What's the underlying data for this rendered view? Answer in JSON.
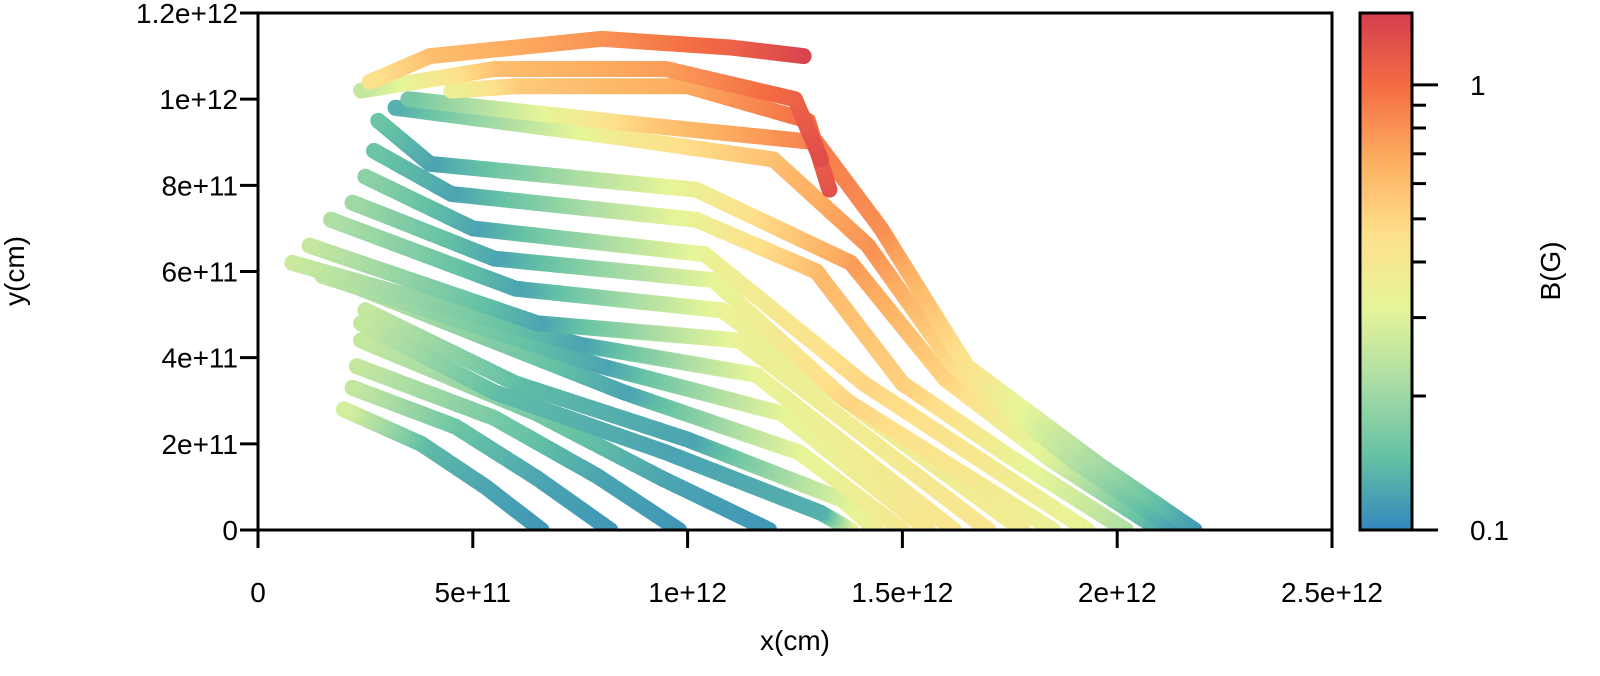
{
  "chart_data": {
    "type": "scatter",
    "title": "",
    "xlabel": "x(cm)",
    "ylabel": "y(cm)",
    "xlim": [
      0,
      2500000000000.0
    ],
    "ylim": [
      0,
      1200000000000.0
    ],
    "x_ticks": [
      0,
      500000000000.0,
      1000000000000.0,
      1500000000000.0,
      2000000000000.0,
      2500000000000.0
    ],
    "x_tick_labels": [
      "0",
      "5e+11",
      "1e+12",
      "1.5e+12",
      "2e+12",
      "2.5e+12"
    ],
    "y_ticks": [
      0,
      200000000000.0,
      400000000000.0,
      600000000000.0,
      800000000000.0,
      1000000000000.0,
      1200000000000.0
    ],
    "y_tick_labels": [
      "0",
      "2e+11",
      "4e+11",
      "6e+11",
      "8e+11",
      "1e+12",
      "1.2e+12"
    ],
    "colorbar": {
      "label": "B(G)",
      "scale": "log",
      "range": [
        0.1,
        1.45
      ],
      "tick_labels": [
        "1",
        "0.1"
      ],
      "major_ticks": [
        1,
        0.1
      ],
      "minor_ticks": [
        0.2,
        0.3,
        0.4,
        0.5,
        0.6,
        0.7,
        0.8,
        0.9
      ],
      "colormap_stops": [
        "#3288bd",
        "#66c2a5",
        "#abdda4",
        "#e6f598",
        "#fee08b",
        "#fdae61",
        "#f46d43",
        "#d53e4f"
      ]
    },
    "description": "Magnetic field lines (sequence of points colored by field strength B). Field-line footpoints at y=0 expand outward from the lower-left (open region) toward the right; upper lines arc over the top.",
    "field_lines": [
      {
        "points": [
          [
            660000000000.0,
            0.0
          ],
          [
            530000000000.0,
            100000000000.0
          ],
          [
            380000000000.0,
            200000000000.0
          ],
          [
            200000000000.0,
            280000000000.0
          ]
        ],
        "b": [
          0.11,
          0.12,
          0.14,
          0.28
        ]
      },
      {
        "points": [
          [
            820000000000.0,
            0.0
          ],
          [
            650000000000.0,
            120000000000.0
          ],
          [
            460000000000.0,
            240000000000.0
          ],
          [
            220000000000.0,
            330000000000.0
          ]
        ],
        "b": [
          0.11,
          0.12,
          0.15,
          0.25
        ]
      },
      {
        "points": [
          [
            980000000000.0,
            0.0
          ],
          [
            790000000000.0,
            125000000000.0
          ],
          [
            550000000000.0,
            260000000000.0
          ],
          [
            230000000000.0,
            380000000000.0
          ]
        ],
        "b": [
          0.11,
          0.12,
          0.16,
          0.25
        ]
      },
      {
        "points": [
          [
            1190000000000.0,
            0.0
          ],
          [
            940000000000.0,
            120000000000.0
          ],
          [
            650000000000.0,
            270000000000.0
          ],
          [
            240000000000.0,
            440000000000.0
          ]
        ],
        "b": [
          0.11,
          0.12,
          0.16,
          0.25
        ]
      },
      {
        "points": [
          [
            1380000000000.0,
            0.0
          ],
          [
            1310000000000.0,
            40000000000.0
          ],
          [
            950000000000.0,
            180000000000.0
          ],
          [
            550000000000.0,
            320000000000.0
          ],
          [
            240000000000.0,
            480000000000.0
          ]
        ],
        "b": [
          0.34,
          0.13,
          0.12,
          0.14,
          0.25
        ]
      },
      {
        "points": [
          [
            1440000000000.0,
            0.0
          ],
          [
            1360000000000.0,
            70000000000.0
          ],
          [
            1000000000000.0,
            210000000000.0
          ],
          [
            600000000000.0,
            340000000000.0
          ],
          [
            250000000000.0,
            510000000000.0
          ]
        ],
        "b": [
          0.38,
          0.3,
          0.12,
          0.14,
          0.25
        ]
      },
      {
        "points": [
          [
            1500000000000.0,
            0.0
          ],
          [
            1260000000000.0,
            180000000000.0
          ],
          [
            850000000000.0,
            320000000000.0
          ],
          [
            240000000000.0,
            560000000000.0
          ]
        ],
        "b": [
          0.4,
          0.32,
          0.12,
          0.24
        ]
      },
      {
        "points": [
          [
            1560000000000.0,
            0.0
          ],
          [
            1220000000000.0,
            270000000000.0
          ],
          [
            800000000000.0,
            380000000000.0
          ],
          [
            150000000000.0,
            590000000000.0
          ]
        ],
        "b": [
          0.42,
          0.32,
          0.12,
          0.24
        ]
      },
      {
        "points": [
          [
            1620000000000.0,
            0.0
          ],
          [
            1160000000000.0,
            360000000000.0
          ],
          [
            750000000000.0,
            430000000000.0
          ],
          [
            80000000000.0,
            620000000000.0
          ]
        ],
        "b": [
          0.42,
          0.33,
          0.12,
          0.26
        ]
      },
      {
        "points": [
          [
            1700000000000.0,
            0.0
          ],
          [
            1120000000000.0,
            440000000000.0
          ],
          [
            650000000000.0,
            480000000000.0
          ],
          [
            120000000000.0,
            660000000000.0
          ]
        ],
        "b": [
          0.42,
          0.34,
          0.12,
          0.25
        ]
      },
      {
        "points": [
          [
            1780000000000.0,
            0.0
          ],
          [
            1080000000000.0,
            510000000000.0
          ],
          [
            600000000000.0,
            560000000000.0
          ],
          [
            170000000000.0,
            720000000000.0
          ]
        ],
        "b": [
          0.38,
          0.34,
          0.12,
          0.22
        ]
      },
      {
        "points": [
          [
            1850000000000.0,
            0.0
          ],
          [
            1370000000000.0,
            300000000000.0
          ],
          [
            1060000000000.0,
            580000000000.0
          ],
          [
            550000000000.0,
            630000000000.0
          ],
          [
            220000000000.0,
            760000000000.0
          ]
        ],
        "b": [
          0.34,
          0.5,
          0.32,
          0.12,
          0.2
        ]
      },
      {
        "points": [
          [
            1930000000000.0,
            0.0
          ],
          [
            1410000000000.0,
            340000000000.0
          ],
          [
            1040000000000.0,
            640000000000.0
          ],
          [
            500000000000.0,
            700000000000.0
          ],
          [
            250000000000.0,
            820000000000.0
          ]
        ],
        "b": [
          0.32,
          0.5,
          0.34,
          0.12,
          0.18
        ]
      },
      {
        "points": [
          [
            2020000000000.0,
            0.0
          ],
          [
            1750000000000.0,
            170000000000.0
          ],
          [
            1500000000000.0,
            340000000000.0
          ],
          [
            1300000000000.0,
            600000000000.0
          ],
          [
            1020000000000.0,
            720000000000.0
          ],
          [
            450000000000.0,
            780000000000.0
          ],
          [
            270000000000.0,
            880000000000.0
          ]
        ],
        "b": [
          0.22,
          0.34,
          0.52,
          0.62,
          0.35,
          0.12,
          0.15
        ]
      },
      {
        "points": [
          [
            2100000000000.0,
            0.0
          ],
          [
            1850000000000.0,
            160000000000.0
          ],
          [
            1600000000000.0,
            350000000000.0
          ],
          [
            1380000000000.0,
            620000000000.0
          ],
          [
            1020000000000.0,
            790000000000.0
          ],
          [
            400000000000.0,
            850000000000.0
          ],
          [
            280000000000.0,
            950000000000.0
          ]
        ],
        "b": [
          0.12,
          0.28,
          0.5,
          0.75,
          0.36,
          0.12,
          0.15
        ]
      },
      {
        "points": [
          [
            2140000000000.0,
            0.0
          ],
          [
            1900000000000.0,
            160000000000.0
          ],
          [
            1620000000000.0,
            380000000000.0
          ],
          [
            1420000000000.0,
            660000000000.0
          ],
          [
            1200000000000.0,
            860000000000.0
          ],
          [
            850000000000.0,
            910000000000.0
          ],
          [
            320000000000.0,
            980000000000.0
          ]
        ],
        "b": [
          0.11,
          0.22,
          0.46,
          0.8,
          0.6,
          0.4,
          0.13
        ]
      },
      {
        "points": [
          [
            2180000000000.0,
            0.0
          ],
          [
            1960000000000.0,
            150000000000.0
          ],
          [
            1650000000000.0,
            380000000000.0
          ],
          [
            1450000000000.0,
            700000000000.0
          ],
          [
            1300000000000.0,
            900000000000.0
          ],
          [
            900000000000.0,
            940000000000.0
          ],
          [
            350000000000.0,
            1000000000000.0
          ]
        ],
        "b": [
          0.11,
          0.2,
          0.42,
          0.8,
          0.9,
          0.55,
          0.16
        ]
      },
      {
        "points": [
          [
            1330000000000.0,
            790000000000.0
          ],
          [
            1280000000000.0,
            950000000000.0
          ],
          [
            1000000000000.0,
            1030000000000.0
          ],
          [
            600000000000.0,
            1030000000000.0
          ],
          [
            450000000000.0,
            1020000000000.0
          ]
        ],
        "b": [
          1.25,
          1.0,
          0.7,
          0.55,
          0.35
        ]
      },
      {
        "points": [
          [
            1310000000000.0,
            860000000000.0
          ],
          [
            1250000000000.0,
            1000000000000.0
          ],
          [
            950000000000.0,
            1070000000000.0
          ],
          [
            550000000000.0,
            1070000000000.0
          ],
          [
            240000000000.0,
            1020000000000.0
          ]
        ],
        "b": [
          1.3,
          1.1,
          0.75,
          0.6,
          0.25
        ]
      },
      {
        "points": [
          [
            1270000000000.0,
            1100000000000.0
          ],
          [
            1100000000000.0,
            1120000000000.0
          ],
          [
            800000000000.0,
            1140000000000.0
          ],
          [
            400000000000.0,
            1100000000000.0
          ],
          [
            260000000000.0,
            1040000000000.0
          ]
        ],
        "b": [
          1.4,
          1.1,
          0.8,
          0.6,
          0.45
        ]
      }
    ]
  }
}
